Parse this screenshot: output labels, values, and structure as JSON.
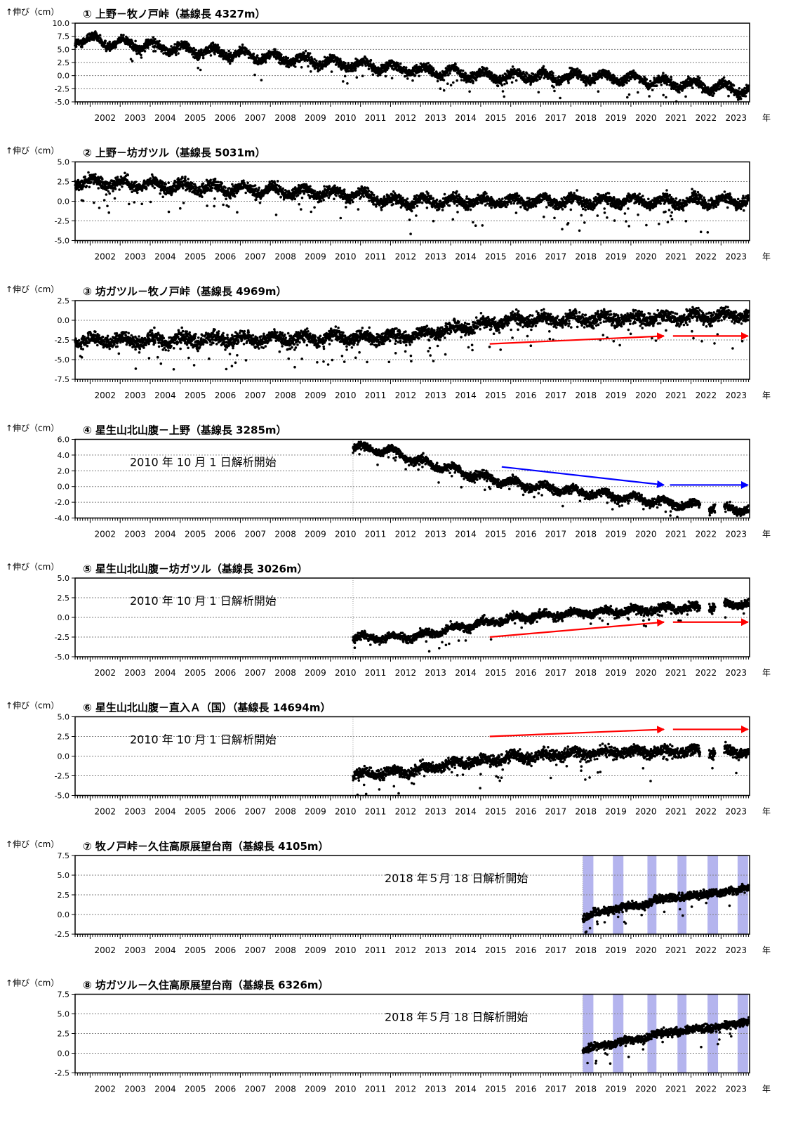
{
  "common": {
    "ylabel": "↑伸び（cm）",
    "year_unit": "年",
    "x_ticks": [
      "2002",
      "2003",
      "2004",
      "2005",
      "2006",
      "2007",
      "2008",
      "2009",
      "2010",
      "2011",
      "2012",
      "2013",
      "2014",
      "2015",
      "2016",
      "2017",
      "2018",
      "2019",
      "2020",
      "2021",
      "2022",
      "2023"
    ],
    "colors": {
      "points": "#000000",
      "red_arrow": "#ff0000",
      "blue_arrow": "#0000ff",
      "band": "#9b9be8",
      "grid": "#808080"
    }
  },
  "chart_data": [
    {
      "type": "scatter",
      "title": "① 上野－牧ノ戸峠（基線長 4327m）",
      "ylim": [
        -5.0,
        10.0
      ],
      "yticks": [
        "10.0",
        "7.5",
        "5.0",
        "2.5",
        "0.0",
        "-2.5",
        "-5.0"
      ],
      "start_year": 2001.5,
      "trend": [
        [
          2001.5,
          7.0
        ],
        [
          2008.0,
          3.5
        ],
        [
          2011.0,
          2.0
        ],
        [
          2015.5,
          -0.2
        ],
        [
          2016.5,
          0.0
        ],
        [
          2020.0,
          -0.5
        ],
        [
          2021.0,
          -1.2
        ],
        [
          2023.9,
          -2.8
        ]
      ],
      "annual_amp": 0.8,
      "noise": 0.45,
      "arrows": [],
      "annotation": ""
    },
    {
      "type": "scatter",
      "title": "② 上野－坊ガツル（基線長 5031m）",
      "ylim": [
        -5.0,
        5.0
      ],
      "yticks": [
        "5.0",
        "2.5",
        "0.0",
        "-2.5",
        "-5.0"
      ],
      "start_year": 2001.5,
      "trend": [
        [
          2001.5,
          2.5
        ],
        [
          2008.0,
          1.3
        ],
        [
          2011.0,
          0.9
        ],
        [
          2012.0,
          0.0
        ],
        [
          2023.9,
          0.0
        ]
      ],
      "annual_amp": 0.5,
      "noise": 0.35,
      "arrows": [],
      "annotation": ""
    },
    {
      "type": "scatter",
      "title": "③ 坊ガツル－牧ノ戸峠（基線長 4969m）",
      "ylim": [
        -7.5,
        2.5
      ],
      "yticks": [
        "2.5",
        "0.0",
        "-2.5",
        "-5.0",
        "-7.5"
      ],
      "start_year": 2001.5,
      "trend": [
        [
          2001.5,
          -2.6
        ],
        [
          2010.0,
          -2.3
        ],
        [
          2012.5,
          -2.1
        ],
        [
          2016.0,
          0.0
        ],
        [
          2020.0,
          0.2
        ],
        [
          2023.9,
          0.6
        ]
      ],
      "annual_amp": 0.4,
      "noise": 0.4,
      "arrows": [
        {
          "color": "red",
          "x0": 2015.3,
          "y0": -3.0,
          "x1": 2021.1,
          "y1": -2.0
        },
        {
          "color": "red",
          "x0": 2021.4,
          "y0": -2.0,
          "x1": 2023.9,
          "y1": -2.0
        }
      ],
      "annotation": ""
    },
    {
      "type": "scatter",
      "title": "④ 星生山北山腹－上野（基線長 3285m）",
      "ylim": [
        -4.0,
        6.0
      ],
      "yticks": [
        "6.0",
        "4.0",
        "2.0",
        "0.0",
        "-2.0",
        "-4.0"
      ],
      "start_year": 2010.75,
      "trend": [
        [
          2010.75,
          5.0
        ],
        [
          2012.0,
          4.5
        ],
        [
          2013.0,
          3.2
        ],
        [
          2015.5,
          0.8
        ],
        [
          2016.5,
          0.2
        ],
        [
          2020.0,
          -1.5
        ],
        [
          2022.3,
          -2.5
        ],
        [
          2023.9,
          -3.0
        ]
      ],
      "annual_amp": 0.4,
      "noise": 0.25,
      "gaps": [
        [
          2022.3,
          2022.6
        ],
        [
          2022.8,
          2023.1
        ]
      ],
      "arrows": [
        {
          "color": "blue",
          "x0": 2015.7,
          "y0": 2.5,
          "x1": 2021.1,
          "y1": 0.2
        },
        {
          "color": "blue",
          "x0": 2021.3,
          "y0": 0.2,
          "x1": 2023.9,
          "y1": 0.2
        }
      ],
      "annotation": "2010 年 10 月 1 日解析開始"
    },
    {
      "type": "scatter",
      "title": "⑤ 星生山北山腹－坊ガツル（基線長 3026m）",
      "ylim": [
        -5.0,
        5.0
      ],
      "yticks": [
        "5.0",
        "2.5",
        "0.0",
        "-2.5",
        "-5.0"
      ],
      "start_year": 2010.75,
      "trend": [
        [
          2010.75,
          -2.6
        ],
        [
          2012.8,
          -2.5
        ],
        [
          2014.0,
          -1.5
        ],
        [
          2016.0,
          -0.1
        ],
        [
          2018.5,
          0.6
        ],
        [
          2022.3,
          1.3
        ],
        [
          2023.9,
          1.8
        ]
      ],
      "annual_amp": 0.3,
      "noise": 0.25,
      "gaps": [
        [
          2022.3,
          2022.6
        ],
        [
          2022.8,
          2023.1
        ]
      ],
      "arrows": [
        {
          "color": "red",
          "x0": 2015.3,
          "y0": -2.5,
          "x1": 2021.1,
          "y1": -0.6
        },
        {
          "color": "red",
          "x0": 2021.4,
          "y0": -0.6,
          "x1": 2023.9,
          "y1": -0.6
        }
      ],
      "annotation": "2010 年 10 月 1 日解析開始"
    },
    {
      "type": "scatter",
      "title": "⑥ 星生山北山腹－直入Ａ（国）（基線長 14694m）",
      "ylim": [
        -5.0,
        5.0
      ],
      "yticks": [
        "5.0",
        "2.5",
        "0.0",
        "-2.5",
        "-5.0"
      ],
      "start_year": 2010.75,
      "trend": [
        [
          2010.75,
          -2.4
        ],
        [
          2012.5,
          -2.0
        ],
        [
          2014.0,
          -1.0
        ],
        [
          2016.5,
          0.0
        ],
        [
          2019.5,
          0.5
        ],
        [
          2023.9,
          0.6
        ]
      ],
      "annual_amp": 0.3,
      "noise": 0.35,
      "gaps": [
        [
          2022.3,
          2022.6
        ],
        [
          2022.8,
          2023.1
        ]
      ],
      "arrows": [
        {
          "color": "red",
          "x0": 2015.3,
          "y0": 2.5,
          "x1": 2021.1,
          "y1": 3.4
        },
        {
          "color": "red",
          "x0": 2021.4,
          "y0": 3.4,
          "x1": 2023.9,
          "y1": 3.4
        }
      ],
      "annotation": "2010 年 10 月 1 日解析開始"
    },
    {
      "type": "scatter",
      "title": "⑦ 牧ノ戸峠－久住高原展望台南（基線長 4105m）",
      "ylim": [
        -2.5,
        7.5
      ],
      "yticks": [
        "7.5",
        "5.0",
        "2.5",
        "0.0",
        "-2.5"
      ],
      "start_year": 2018.4,
      "trend": [
        [
          2018.4,
          -0.7
        ],
        [
          2018.8,
          0.3
        ],
        [
          2019.4,
          0.5
        ],
        [
          2019.7,
          1.0
        ],
        [
          2020.5,
          1.1
        ],
        [
          2020.8,
          2.0
        ],
        [
          2021.8,
          2.2
        ],
        [
          2022.1,
          2.5
        ],
        [
          2022.8,
          2.7
        ],
        [
          2023.2,
          3.0
        ],
        [
          2023.9,
          3.4
        ]
      ],
      "annual_amp": 0.0,
      "noise": 0.25,
      "bands": [
        [
          2018.4,
          2018.75
        ],
        [
          2019.4,
          2019.75
        ],
        [
          2020.55,
          2020.85
        ],
        [
          2021.55,
          2021.85
        ],
        [
          2022.55,
          2022.9
        ],
        [
          2023.55,
          2023.9
        ]
      ],
      "arrows": [],
      "annotation": "2018 年５月 18 日解析開始"
    },
    {
      "type": "scatter",
      "title": "⑧ 坊ガツル－久住高原展望台南（基線長 6326m）",
      "ylim": [
        -2.5,
        7.5
      ],
      "yticks": [
        "7.5",
        "5.0",
        "2.5",
        "0.0",
        "-2.5"
      ],
      "start_year": 2018.4,
      "trend": [
        [
          2018.4,
          0.2
        ],
        [
          2018.8,
          0.9
        ],
        [
          2019.4,
          1.1
        ],
        [
          2019.7,
          1.6
        ],
        [
          2020.5,
          1.8
        ],
        [
          2020.8,
          2.5
        ],
        [
          2021.8,
          2.8
        ],
        [
          2022.1,
          3.1
        ],
        [
          2022.8,
          3.2
        ],
        [
          2023.2,
          3.6
        ],
        [
          2023.9,
          4.0
        ]
      ],
      "annual_amp": 0.0,
      "noise": 0.25,
      "bands": [
        [
          2018.4,
          2018.75
        ],
        [
          2019.4,
          2019.75
        ],
        [
          2020.55,
          2020.85
        ],
        [
          2021.55,
          2021.85
        ],
        [
          2022.55,
          2022.9
        ],
        [
          2023.55,
          2023.9
        ]
      ],
      "arrows": [],
      "annotation": "2018 年５月 18 日解析開始"
    }
  ]
}
